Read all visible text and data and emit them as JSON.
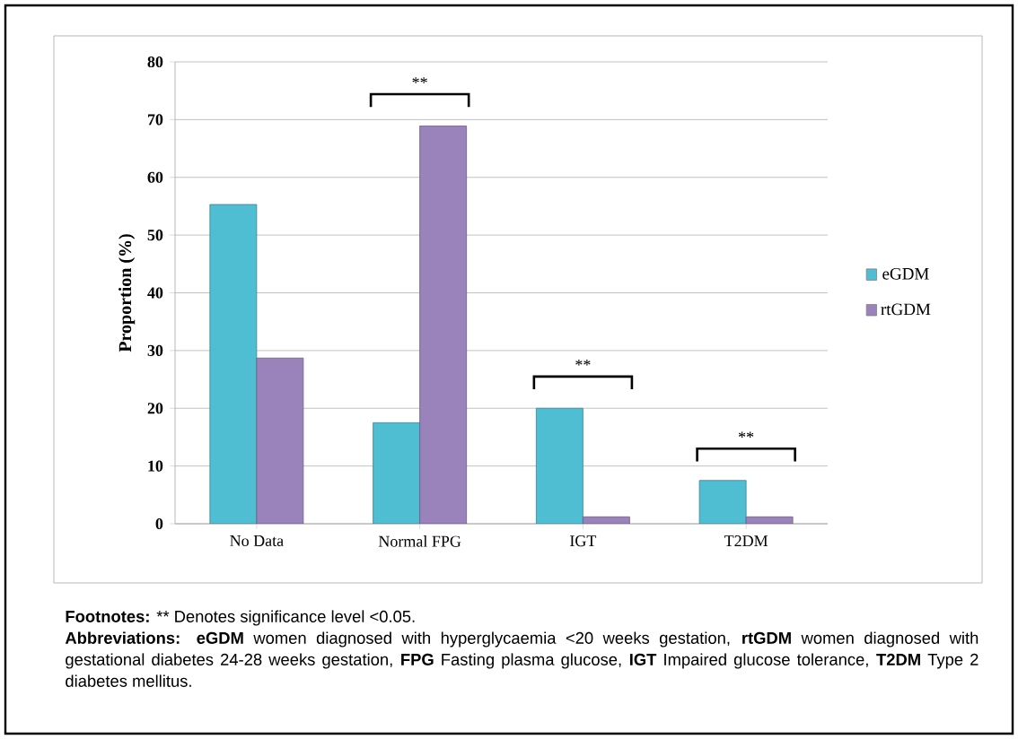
{
  "chart_data": {
    "type": "bar",
    "ylabel": "Proportion (%)",
    "categories": [
      "No Data",
      "Normal FPG",
      "IGT",
      "T2DM"
    ],
    "series": [
      {
        "name": "eGDM",
        "color": "#4fbdd2",
        "values": [
          55.3,
          17.5,
          20.0,
          7.5
        ]
      },
      {
        "name": "rtGDM",
        "color": "#9a82bb",
        "values": [
          28.7,
          68.9,
          1.2,
          1.2
        ]
      }
    ],
    "ylim": [
      0,
      80
    ],
    "yticks": [
      0,
      10,
      20,
      30,
      40,
      50,
      60,
      70,
      80
    ],
    "grid": "y",
    "legend": "right",
    "annotations": [
      "**",
      "**",
      "**",
      "Footnotes:",
      "** Denotes significance level <0.05.",
      "**Abbreviations:** **eGDM** women diagnosed with hyperglycaemia <20 weeks gestation, **rtGDM** women diagnosed with gestational diabetes 24-28 weeks gestation, **FPG** Fasting plasma glucose, **IGT** Impaired glucose tolerance, **T2DM** Type 2 diabetes mellitus."
    ]
  }
}
